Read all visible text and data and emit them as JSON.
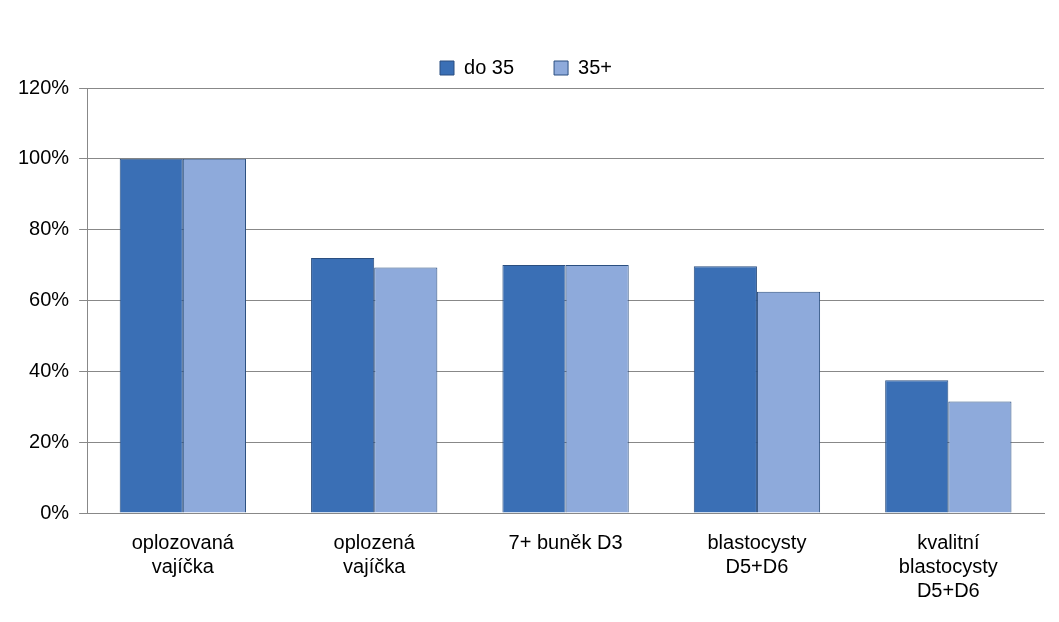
{
  "chart_data": {
    "type": "bar",
    "categories": [
      "oplozovaná vajíčka",
      "oplozená vajíčka",
      "7+ buněk D3",
      "blastocysty D5+D6",
      "kvalitní blastocysty D5+D6"
    ],
    "series": [
      {
        "name": "do 35",
        "color": "#3a6fb5",
        "values": [
          100,
          72,
          70,
          69.7,
          37.5
        ]
      },
      {
        "name": "35+",
        "color": "#8eaadb",
        "values": [
          100,
          69.3,
          70,
          62.5,
          31.5
        ]
      }
    ],
    "ylim": [
      0,
      120
    ],
    "yticks": [
      {
        "value": 0,
        "label": "0%"
      },
      {
        "value": 20,
        "label": "20%"
      },
      {
        "value": 40,
        "label": "40%"
      },
      {
        "value": 60,
        "label": "60%"
      },
      {
        "value": 80,
        "label": "80%"
      },
      {
        "value": 100,
        "label": "100%"
      },
      {
        "value": 120,
        "label": "120%"
      }
    ],
    "grid": "y",
    "legend": "top"
  }
}
